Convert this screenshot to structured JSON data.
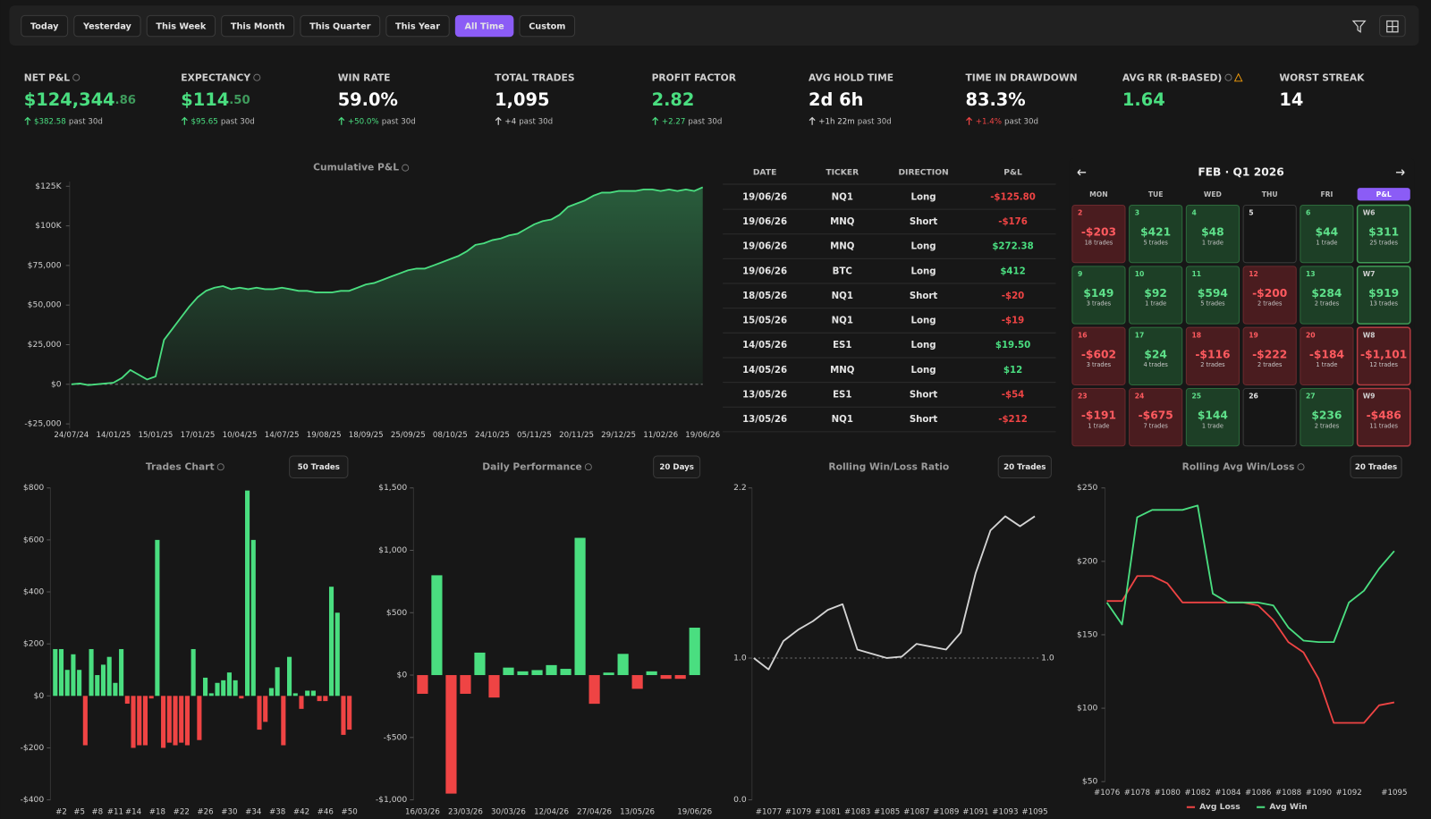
{
  "toolbar": {
    "buttons": [
      "Today",
      "Yesterday",
      "This Week",
      "This Month",
      "This Quarter",
      "This Year",
      "All Time",
      "Custom"
    ],
    "active": 6
  },
  "stats": [
    {
      "label": "NET P&L",
      "value": "$124,344",
      "cents": ".86",
      "value_color": "#4ade80",
      "change": "$382.58",
      "note": "past 30d",
      "change_color": "#4ade80",
      "info_icon": true
    },
    {
      "label": "EXPECTANCY",
      "value": "$114",
      "cents": ".50",
      "value_color": "#4ade80",
      "change": "$95.65",
      "note": "past 30d",
      "change_color": "#4ade80",
      "info_icon": true
    },
    {
      "label": "WIN RATE",
      "value": "59.0%",
      "value_color": "#ffffff",
      "change": "+50.0%",
      "note": "past 30d",
      "change_color": "#4ade80"
    },
    {
      "label": "TOTAL TRADES",
      "value": "1,095",
      "value_color": "#ffffff",
      "change": "+4",
      "note": "past 30d",
      "change_color": "#d4d4d4"
    },
    {
      "label": "PROFIT FACTOR",
      "value": "2.82",
      "value_color": "#4ade80",
      "change": "+2.27",
      "note": "past 30d",
      "change_color": "#4ade80"
    },
    {
      "label": "AVG HOLD TIME",
      "value": "2d 6h",
      "value_color": "#ffffff",
      "change": "+1h 22m",
      "note": "past 30d",
      "change_color": "#d4d4d4"
    },
    {
      "label": "TIME IN DRAWDOWN",
      "value": "83.3%",
      "value_color": "#ffffff",
      "change": "+1.4%",
      "note": "past 30d",
      "change_color": "#ef4444"
    },
    {
      "label": "AVG RR (R-BASED)",
      "value": "1.64",
      "value_color": "#4ade80",
      "info_icon": true,
      "warning_icon": true
    },
    {
      "label": "WORST STREAK",
      "value": "14",
      "value_color": "#ffffff"
    }
  ],
  "chart_data": [
    {
      "type": "area",
      "title": "Cumulative P&L",
      "info_icon": true,
      "color": "#4ade80",
      "categories": [
        "24/07/24",
        null,
        null,
        null,
        null,
        "14/01/25",
        null,
        null,
        null,
        null,
        "15/01/25",
        null,
        null,
        null,
        null,
        "17/01/25",
        null,
        null,
        null,
        null,
        "10/04/25",
        null,
        null,
        null,
        null,
        "14/07/25",
        null,
        null,
        null,
        null,
        "19/08/25",
        null,
        null,
        null,
        null,
        "18/09/25",
        null,
        null,
        null,
        null,
        "25/09/25",
        null,
        null,
        null,
        null,
        "08/10/25",
        null,
        null,
        null,
        null,
        "24/10/25",
        null,
        null,
        null,
        null,
        "05/11/25",
        null,
        null,
        null,
        null,
        "20/11/25",
        null,
        null,
        null,
        null,
        "29/12/25",
        null,
        null,
        null,
        null,
        "11/02/26",
        null,
        null,
        null,
        null,
        "19/06/26"
      ],
      "values": [
        0,
        500,
        -500,
        0,
        500,
        1000,
        4000,
        9000,
        6000,
        3000,
        5000,
        28000,
        35000,
        42000,
        49000,
        55000,
        59000,
        61000,
        62000,
        60000,
        61000,
        60000,
        61000,
        60000,
        60000,
        61000,
        60000,
        59000,
        59000,
        58000,
        58000,
        58000,
        59000,
        59000,
        61000,
        63000,
        64000,
        66000,
        68000,
        70000,
        72000,
        73000,
        73000,
        75000,
        77000,
        79000,
        81000,
        84000,
        88000,
        89000,
        91000,
        92000,
        94000,
        95000,
        98000,
        101000,
        103000,
        104000,
        107000,
        112000,
        114000,
        116000,
        119000,
        121000,
        121000,
        122000,
        122000,
        122000,
        123000,
        123000,
        122000,
        123000,
        122000,
        123000,
        122000,
        124345
      ],
      "ylim": [
        -28000,
        128000
      ],
      "yticks": [
        {
          "value": 125000,
          "label": "$125K"
        },
        {
          "value": 100000,
          "label": "$100K"
        },
        {
          "value": 75000,
          "label": "$75,000"
        },
        {
          "value": 50000,
          "label": "$50,000"
        },
        {
          "value": 25000,
          "label": "$25,000"
        },
        {
          "value": 0,
          "label": "$0"
        },
        {
          "value": -25000,
          "label": "-$25,000"
        }
      ],
      "grid": false
    },
    {
      "type": "bar",
      "title": "Trades Chart",
      "info_icon": true,
      "button": "50 Trades",
      "color": "#4ade80",
      "negative_color": "#ef4444",
      "categories": [
        null,
        "#2",
        null,
        null,
        "#5",
        null,
        null,
        "#8",
        null,
        null,
        "#11",
        null,
        null,
        "#14",
        null,
        null,
        null,
        "#18",
        null,
        null,
        null,
        "#22",
        null,
        null,
        null,
        "#26",
        null,
        null,
        null,
        "#30",
        null,
        null,
        null,
        "#34",
        null,
        null,
        null,
        "#38",
        null,
        null,
        null,
        "#42",
        null,
        null,
        null,
        "#46",
        null,
        null,
        null,
        "#50"
      ],
      "values": [
        180,
        180,
        100,
        160,
        100,
        -190,
        180,
        80,
        120,
        150,
        50,
        180,
        -30,
        -200,
        -190,
        -190,
        -10,
        600,
        -200,
        -180,
        -190,
        -180,
        -190,
        180,
        -170,
        70,
        10,
        50,
        60,
        90,
        60,
        -10,
        790,
        600,
        -130,
        -100,
        30,
        110,
        -190,
        150,
        10,
        -50,
        20,
        20,
        -20,
        -20,
        420,
        320,
        -150,
        -130
      ],
      "ylim": [
        -400,
        800
      ],
      "yticks": [
        {
          "value": 800,
          "label": "$800"
        },
        {
          "value": 600,
          "label": "$600"
        },
        {
          "value": 400,
          "label": "$400"
        },
        {
          "value": 200,
          "label": "$200"
        },
        {
          "value": 0,
          "label": "$0"
        },
        {
          "value": -200,
          "label": "-$200"
        },
        {
          "value": -400,
          "label": "-$400"
        }
      ],
      "grid": false
    },
    {
      "type": "bar",
      "title": "Daily Performance",
      "info_icon": true,
      "button": "20 Days",
      "color": "#4ade80",
      "negative_color": "#ef4444",
      "categories": [
        "16/03/26",
        null,
        null,
        "23/03/26",
        null,
        null,
        "30/03/26",
        null,
        null,
        "12/04/26",
        null,
        null,
        "27/04/26",
        null,
        null,
        "13/05/26",
        null,
        null,
        null,
        "19/06/26"
      ],
      "values": [
        -150,
        800,
        -950,
        -150,
        180,
        -180,
        60,
        30,
        40,
        80,
        50,
        1100,
        -230,
        20,
        170,
        -110,
        30,
        -30,
        -30,
        380
      ],
      "ylim": [
        -1000,
        1500
      ],
      "yticks": [
        {
          "value": 1500,
          "label": "$1,500"
        },
        {
          "value": 1000,
          "label": "$1,000"
        },
        {
          "value": 500,
          "label": "$500"
        },
        {
          "value": 0,
          "label": "$0"
        },
        {
          "value": -500,
          "label": "-$500"
        },
        {
          "value": -1000,
          "label": "-$1,000"
        }
      ],
      "grid": false
    },
    {
      "type": "line",
      "title": "Rolling Win/Loss Ratio",
      "button": "20 Trades",
      "color": "#d4d4d4",
      "categories": [
        null,
        "#1077",
        null,
        "#1079",
        null,
        "#1081",
        null,
        "#1083",
        null,
        "#1085",
        null,
        "#1087",
        null,
        "#1089",
        null,
        "#1091",
        null,
        "#1093",
        null,
        "#1095"
      ],
      "values": [
        1.0,
        0.92,
        1.12,
        1.2,
        1.26,
        1.34,
        1.38,
        1.06,
        1.03,
        1.0,
        1.01,
        1.1,
        1.08,
        1.06,
        1.18,
        1.6,
        1.9,
        2.0,
        1.93,
        2.0
      ],
      "reference": {
        "value": 1,
        "label": "1.0"
      },
      "ylim": [
        0,
        2.2
      ],
      "yticks": [
        2.2,
        {
          "value": 1,
          "label": "1.0"
        },
        {
          "value": 0,
          "label": "0.0"
        }
      ],
      "grid": false
    },
    {
      "type": "line",
      "title": "Rolling Avg Win/Loss",
      "info_icon": true,
      "button": "20 Trades",
      "categories": [
        "#1076",
        null,
        "#1078",
        null,
        "#1080",
        null,
        "#1082",
        null,
        "#1084",
        null,
        "#1086",
        null,
        "#1088",
        null,
        "#1090",
        null,
        "#1092",
        null,
        null,
        "#1095"
      ],
      "series": [
        {
          "name": "Avg Loss",
          "color": "#ef4444",
          "values": [
            173,
            173,
            190,
            190,
            185,
            172,
            172,
            172,
            172,
            172,
            170,
            160,
            145,
            138,
            120,
            90,
            90,
            90,
            102,
            104
          ]
        },
        {
          "name": "Avg Win",
          "color": "#4ade80",
          "values": [
            172,
            157,
            230,
            235,
            235,
            235,
            238,
            178,
            172,
            172,
            172,
            170,
            155,
            146,
            145,
            145,
            172,
            180,
            195,
            207
          ]
        }
      ],
      "ylim": [
        50,
        250
      ],
      "yticks": [
        {
          "value": 250,
          "label": "$250"
        },
        {
          "value": 200,
          "label": "$200"
        },
        {
          "value": 150,
          "label": "$150"
        },
        {
          "value": 100,
          "label": "$100"
        },
        {
          "value": 50,
          "label": "$50"
        }
      ],
      "legend": "bottom",
      "grid": false
    }
  ],
  "trades_table": {
    "columns": [
      "DATE",
      "TICKER",
      "DIRECTION",
      "P&L"
    ],
    "rows": [
      [
        "19/06/26",
        "NQ1",
        "Long",
        "-$125.80"
      ],
      [
        "19/06/26",
        "MNQ",
        "Short",
        "-$176"
      ],
      [
        "19/06/26",
        "MNQ",
        "Long",
        "$272.38"
      ],
      [
        "19/06/26",
        "BTC",
        "Long",
        "$412"
      ],
      [
        "18/05/26",
        "NQ1",
        "Short",
        "-$20"
      ],
      [
        "15/05/26",
        "NQ1",
        "Long",
        "-$19"
      ],
      [
        "14/05/26",
        "ES1",
        "Long",
        "$19.50"
      ],
      [
        "14/05/26",
        "MNQ",
        "Long",
        "$12"
      ],
      [
        "13/05/26",
        "ES1",
        "Short",
        "-$54"
      ],
      [
        "13/05/26",
        "NQ1",
        "Short",
        "-$212"
      ]
    ]
  },
  "calendar": {
    "title": "FEB · Q1 2026",
    "days": [
      "MON",
      "TUE",
      "WED",
      "THU",
      "FRI",
      "P&L"
    ],
    "weeks": [
      [
        {
          "day": "2",
          "pnl": "-$203",
          "trades": "18 trades"
        },
        {
          "day": "3",
          "pnl": "$421",
          "trades": "5 trades"
        },
        {
          "day": "4",
          "pnl": "$48",
          "trades": "1 trade"
        },
        {
          "day": "5"
        },
        {
          "day": "6",
          "pnl": "$44",
          "trades": "1 trade"
        },
        {
          "day": "W6",
          "pnl": "$311",
          "trades": "25 trades"
        }
      ],
      [
        {
          "day": "9",
          "pnl": "$149",
          "trades": "3 trades"
        },
        {
          "day": "10",
          "pnl": "$92",
          "trades": "1 trade"
        },
        {
          "day": "11",
          "pnl": "$594",
          "trades": "5 trades"
        },
        {
          "day": "12",
          "pnl": "-$200",
          "trades": "2 trades"
        },
        {
          "day": "13",
          "pnl": "$284",
          "trades": "2 trades"
        },
        {
          "day": "W7",
          "pnl": "$919",
          "trades": "13 trades"
        }
      ],
      [
        {
          "day": "16",
          "pnl": "-$602",
          "trades": "3 trades"
        },
        {
          "day": "17",
          "pnl": "$24",
          "trades": "4 trades"
        },
        {
          "day": "18",
          "pnl": "-$116",
          "trades": "2 trades"
        },
        {
          "day": "19",
          "pnl": "-$222",
          "trades": "2 trades"
        },
        {
          "day": "20",
          "pnl": "-$184",
          "trades": "1 trade"
        },
        {
          "day": "W8",
          "pnl": "-$1,101",
          "trades": "12 trades"
        }
      ],
      [
        {
          "day": "23",
          "pnl": "-$191",
          "trades": "1 trade"
        },
        {
          "day": "24",
          "pnl": "-$675",
          "trades": "7 trades"
        },
        {
          "day": "25",
          "pnl": "$144",
          "trades": "1 trade"
        },
        {
          "day": "26"
        },
        {
          "day": "27",
          "pnl": "$236",
          "trades": "2 trades"
        },
        {
          "day": "W9",
          "pnl": "-$486",
          "trades": "11 trades"
        }
      ]
    ]
  }
}
